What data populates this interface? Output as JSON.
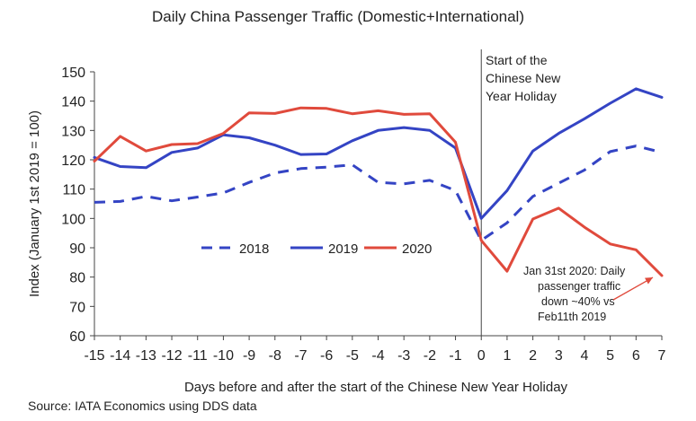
{
  "chart_data": {
    "type": "line",
    "title": "Daily China Passenger Traffic (Domestic+International)",
    "xlabel": "Days before and after the start of the Chinese New Year Holiday",
    "ylabel": "Index (January 1st 2019 = 100)",
    "ylim": [
      60,
      150
    ],
    "yticks": [
      60,
      70,
      80,
      90,
      100,
      110,
      120,
      130,
      140,
      150
    ],
    "x": [
      -15,
      -14,
      -13,
      -12,
      -11,
      -10,
      -9,
      -8,
      -7,
      -6,
      -5,
      -4,
      -3,
      -2,
      -1,
      0,
      1,
      2,
      3,
      4,
      5,
      6,
      7
    ],
    "grid": false,
    "legend_position": "center",
    "series": [
      {
        "name": "2018",
        "color": "#3444c4",
        "style": "dashed",
        "values": [
          105.5,
          105.8,
          107.5,
          106.0,
          107.3,
          108.7,
          112.3,
          115.5,
          117.0,
          117.5,
          118.3,
          112.3,
          111.8,
          113.0,
          109.5,
          92.5,
          98.5,
          107.5,
          112.0,
          116.5,
          122.8,
          124.7,
          122.5
        ]
      },
      {
        "name": "2019",
        "color": "#3444c4",
        "style": "solid",
        "values": [
          120.8,
          117.7,
          117.3,
          122.5,
          124.0,
          128.5,
          127.5,
          125.0,
          121.8,
          122.0,
          126.5,
          130.0,
          131.0,
          130.0,
          124.0,
          100.0,
          109.5,
          123.0,
          129.0,
          134.0,
          139.3,
          144.2,
          141.3
        ]
      },
      {
        "name": "2020",
        "color": "#e04a3c",
        "style": "solid",
        "values": [
          119.5,
          128.0,
          123.0,
          125.2,
          125.5,
          129.0,
          136.0,
          135.8,
          137.7,
          137.5,
          135.7,
          136.7,
          135.5,
          135.7,
          126.0,
          92.5,
          82.0,
          99.8,
          103.5,
          97.0,
          91.3,
          89.3,
          80.5
        ]
      }
    ],
    "annotations": {
      "holiday_start": [
        "Start of the",
        "Chinese New",
        "Year Holiday"
      ],
      "traffic_note": [
        "Jan 31st 2020: Daily",
        "passenger traffic",
        "down ~40% vs",
        "Feb11th 2019"
      ]
    },
    "source": "Source: IATA Economics using DDS data"
  }
}
